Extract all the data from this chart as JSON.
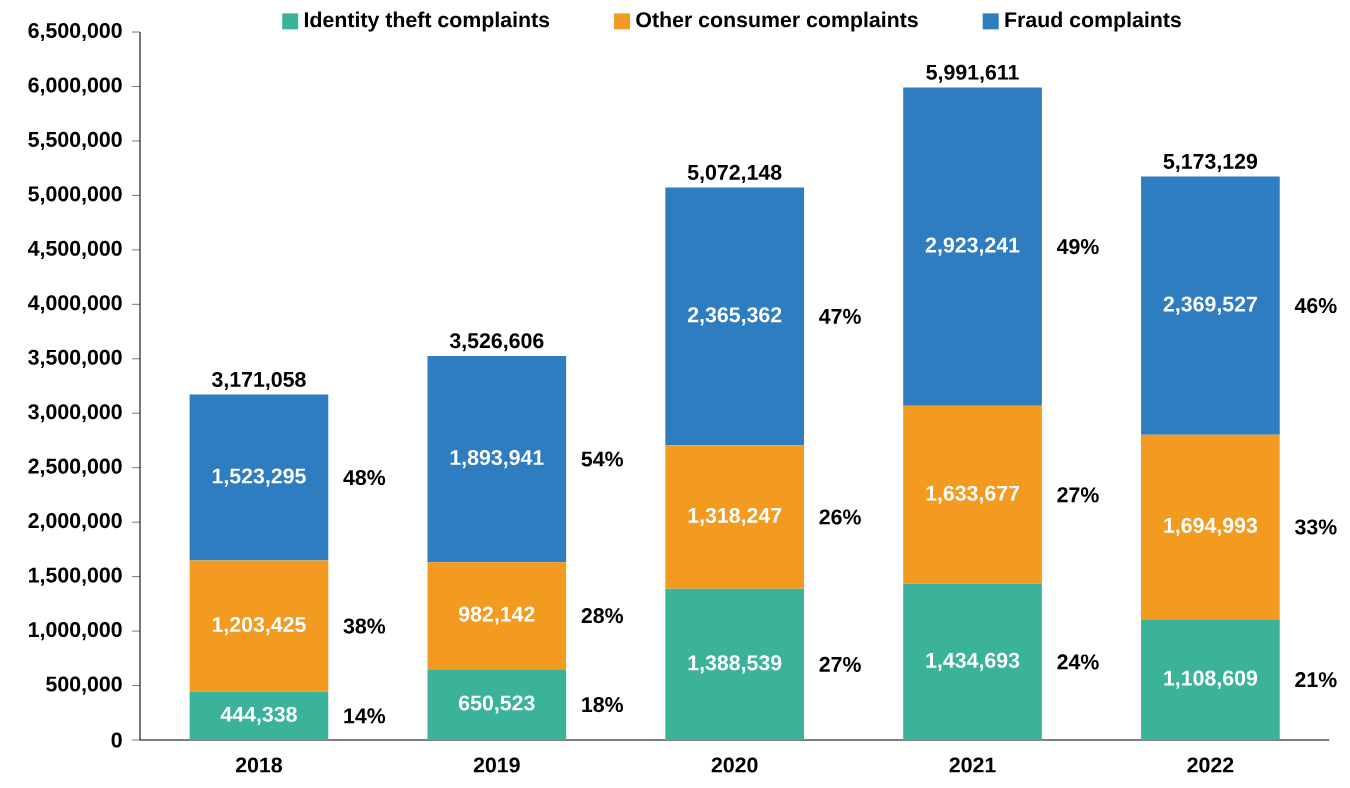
{
  "chart_data": {
    "type": "bar",
    "stacked": true,
    "legend": "top",
    "categories": [
      "2018",
      "2019",
      "2020",
      "2021",
      "2022"
    ],
    "series": [
      {
        "name": "Identity theft complaints",
        "color": "#3bb39a",
        "values": [
          444338,
          650523,
          1388539,
          1434693,
          1108609
        ],
        "value_labels": [
          "444,338",
          "650,523",
          "1,388,539",
          "1,434,693",
          "1,108,609"
        ]
      },
      {
        "name": "Other consumer complaints",
        "color": "#f39b21",
        "values": [
          1203425,
          982142,
          1318247,
          1633677,
          1694993
        ],
        "value_labels": [
          "1,203,425",
          "982,142",
          "1,318,247",
          "1,633,677",
          "1,694,993"
        ]
      },
      {
        "name": "Fraud complaints",
        "color": "#2f7dc1",
        "values": [
          1523295,
          1893941,
          2365362,
          2923241,
          2369527
        ],
        "value_labels": [
          "1,523,295",
          "1,893,941",
          "2,365,362",
          "2,923,241",
          "2,369,527"
        ]
      }
    ],
    "totals": [
      "3,171,058",
      "3,526,606",
      "5,072,148",
      "5,991,611",
      "5,173,129"
    ],
    "ylim": [
      0,
      6500000
    ],
    "yticks": [
      {
        "value": 0,
        "label": "0"
      },
      {
        "value": 500000,
        "label": "500,000"
      },
      {
        "value": 1000000,
        "label": "1,000,000"
      },
      {
        "value": 1500000,
        "label": "1,500,000"
      },
      {
        "value": 2000000,
        "label": "2,000,000"
      },
      {
        "value": 2500000,
        "label": "2,500,000"
      },
      {
        "value": 3000000,
        "label": "3,000,000"
      },
      {
        "value": 3500000,
        "label": "3,500,000"
      },
      {
        "value": 4000000,
        "label": "4,000,000"
      },
      {
        "value": 4500000,
        "label": "4,500,000"
      },
      {
        "value": 5000000,
        "label": "5,000,000"
      },
      {
        "value": 5500000,
        "label": "5,500,000"
      },
      {
        "value": 6000000,
        "label": "6,000,000"
      },
      {
        "value": 6500000,
        "label": "6,500,000"
      }
    ],
    "annotations": [
      "14%",
      "38%",
      "48%",
      "18%",
      "28%",
      "54%",
      "27%",
      "26%",
      "47%",
      "24%",
      "27%",
      "49%",
      "21%",
      "33%",
      "46%"
    ]
  }
}
